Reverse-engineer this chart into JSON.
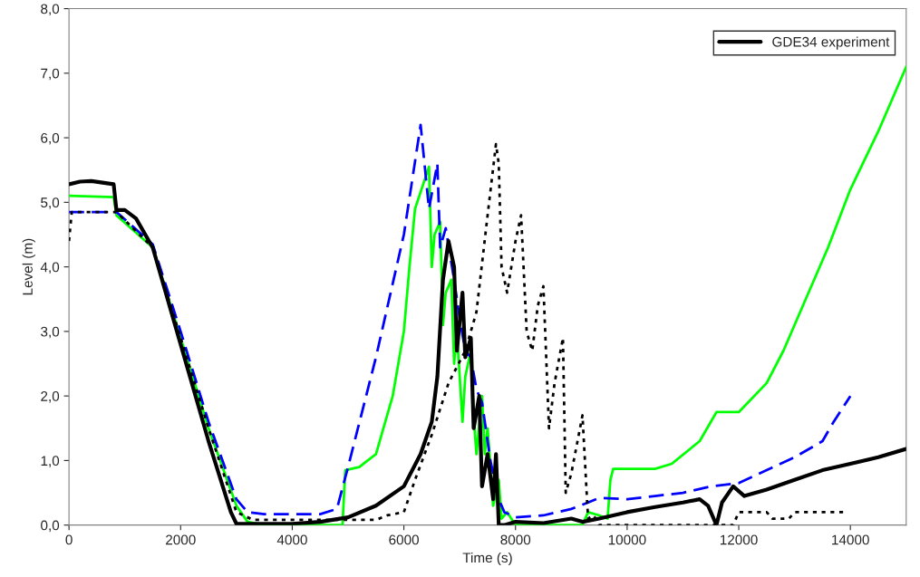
{
  "chart_data": {
    "type": "line",
    "xlabel": "Time (s)",
    "ylabel": "Level (m)",
    "xlim": [
      0,
      15000
    ],
    "xticks": [
      0,
      2000,
      4000,
      6000,
      8000,
      10000,
      12000,
      14000
    ],
    "ylim": [
      0,
      8
    ],
    "yticks": [
      {
        "value": 0,
        "label": "0,0"
      },
      {
        "value": 1,
        "label": "1,0"
      },
      {
        "value": 2,
        "label": "2,0"
      },
      {
        "value": 3,
        "label": "3,0"
      },
      {
        "value": 4,
        "label": "4,0"
      },
      {
        "value": 5,
        "label": "5,0"
      },
      {
        "value": 6,
        "label": "6,0"
      },
      {
        "value": 7,
        "label": "7,0"
      },
      {
        "value": 8,
        "label": "8,0"
      }
    ],
    "grid": false,
    "legend": "top right",
    "marker": "none",
    "series": [
      {
        "name": "GDE34 experiment",
        "color": "#000000",
        "line_style": "solid",
        "x": [
          0,
          200,
          400,
          800,
          850,
          1000,
          1200,
          1500,
          2000,
          2500,
          2900,
          3000,
          4000,
          4500,
          5000,
          5500,
          6000,
          6300,
          6500,
          6600,
          6700,
          6800,
          6900,
          6950,
          7050,
          7100,
          7200,
          7250,
          7350,
          7400,
          7500,
          7600,
          7650,
          7700,
          7800,
          8000,
          8500,
          9000,
          9200,
          9500,
          10000,
          10500,
          11000,
          11300,
          11450,
          11600,
          11700,
          11900,
          12100,
          12500,
          13000,
          13500,
          14000,
          14500,
          15000
        ],
        "values": [
          5.28,
          5.32,
          5.33,
          5.28,
          4.88,
          4.88,
          4.75,
          4.3,
          2.8,
          1.3,
          0.2,
          0.02,
          0.02,
          0.05,
          0.12,
          0.3,
          0.6,
          1.1,
          1.6,
          2.3,
          3.8,
          4.4,
          4.0,
          2.7,
          3.6,
          2.6,
          2.9,
          1.5,
          2.0,
          0.6,
          1.1,
          0.4,
          1.1,
          0.0,
          0.0,
          0.05,
          0.03,
          0.1,
          0.05,
          0.1,
          0.2,
          0.28,
          0.35,
          0.4,
          0.3,
          0.0,
          0.35,
          0.6,
          0.45,
          0.55,
          0.7,
          0.85,
          0.95,
          1.05,
          1.18
        ]
      },
      {
        "color": "#00ff00",
        "line_style": "solid",
        "x": [
          0,
          800,
          850,
          1500,
          2000,
          2500,
          3000,
          3200,
          3500,
          4900,
          4950,
          5200,
          5500,
          5800,
          6000,
          6100,
          6200,
          6450,
          6500,
          6550,
          6650,
          6700,
          6750,
          6850,
          6900,
          6950,
          7050,
          7100,
          7200,
          7250,
          7300,
          7400,
          7450,
          7500,
          7600,
          7700,
          7750,
          7850,
          8000,
          9200,
          9300,
          9500,
          9650,
          9700,
          9750,
          10500,
          10800,
          11300,
          11600,
          12000,
          12500,
          12800,
          13200,
          13600,
          14000,
          14500,
          15000
        ],
        "values": [
          5.1,
          5.08,
          4.8,
          4.3,
          2.9,
          1.5,
          0.3,
          0.05,
          0.0,
          0.0,
          0.85,
          0.9,
          1.1,
          2.0,
          3.0,
          4.0,
          4.9,
          5.55,
          4.0,
          4.5,
          4.7,
          3.1,
          3.6,
          3.8,
          2.5,
          3.0,
          1.6,
          2.3,
          2.7,
          1.7,
          1.1,
          2.0,
          1.1,
          1.5,
          0.3,
          0.7,
          0.1,
          0.2,
          0.0,
          0.0,
          0.2,
          0.15,
          0.1,
          0.7,
          0.87,
          0.87,
          0.95,
          1.3,
          1.75,
          1.75,
          2.2,
          2.7,
          3.5,
          4.3,
          5.2,
          6.1,
          7.1
        ]
      },
      {
        "color": "#0000ff",
        "line_style": "dashed",
        "x": [
          0,
          850,
          1500,
          2000,
          2500,
          3000,
          3200,
          3500,
          4500,
          4800,
          5000,
          5500,
          6000,
          6300,
          6450,
          6600,
          6650,
          6750,
          6900,
          7000,
          7100,
          7200,
          7300,
          7400,
          7550,
          7700,
          7800,
          8000,
          8500,
          9000,
          9300,
          9500,
          10000,
          10500,
          11000,
          11500,
          12000,
          12500,
          13000,
          13500,
          13700,
          14000
        ],
        "values": [
          4.85,
          4.85,
          4.35,
          3.0,
          1.6,
          0.4,
          0.2,
          0.17,
          0.17,
          0.25,
          0.9,
          2.6,
          4.5,
          6.2,
          4.9,
          5.6,
          4.3,
          4.6,
          3.8,
          3.2,
          2.7,
          2.6,
          2.1,
          1.9,
          1.0,
          0.4,
          0.2,
          0.12,
          0.15,
          0.25,
          0.35,
          0.42,
          0.4,
          0.45,
          0.5,
          0.6,
          0.65,
          0.85,
          1.05,
          1.3,
          1.6,
          2.0
        ]
      },
      {
        "color": "#000000",
        "line_style": "dotted",
        "x": [
          0,
          50,
          850,
          1500,
          2000,
          2500,
          3000,
          3300,
          5500,
          5700,
          6000,
          6200,
          6500,
          6800,
          7100,
          7300,
          7500,
          7650,
          7700,
          7750,
          7850,
          8000,
          8100,
          8200,
          8300,
          8400,
          8500,
          8600,
          8700,
          8850,
          8900,
          9000,
          9200,
          9300,
          9400,
          9500,
          11900,
          12000,
          12500,
          12600,
          12900,
          13000,
          13900
        ],
        "values": [
          4.4,
          4.85,
          4.85,
          4.3,
          2.9,
          1.5,
          0.2,
          0.08,
          0.08,
          0.15,
          0.2,
          0.7,
          1.4,
          2.2,
          2.7,
          3.3,
          4.8,
          5.9,
          5.6,
          4.0,
          3.6,
          4.4,
          4.8,
          3.0,
          2.7,
          3.4,
          3.7,
          1.5,
          2.2,
          2.9,
          0.5,
          0.8,
          1.7,
          0.1,
          0.15,
          0.0,
          0.0,
          0.2,
          0.2,
          0.1,
          0.1,
          0.2,
          0.2
        ]
      }
    ]
  }
}
